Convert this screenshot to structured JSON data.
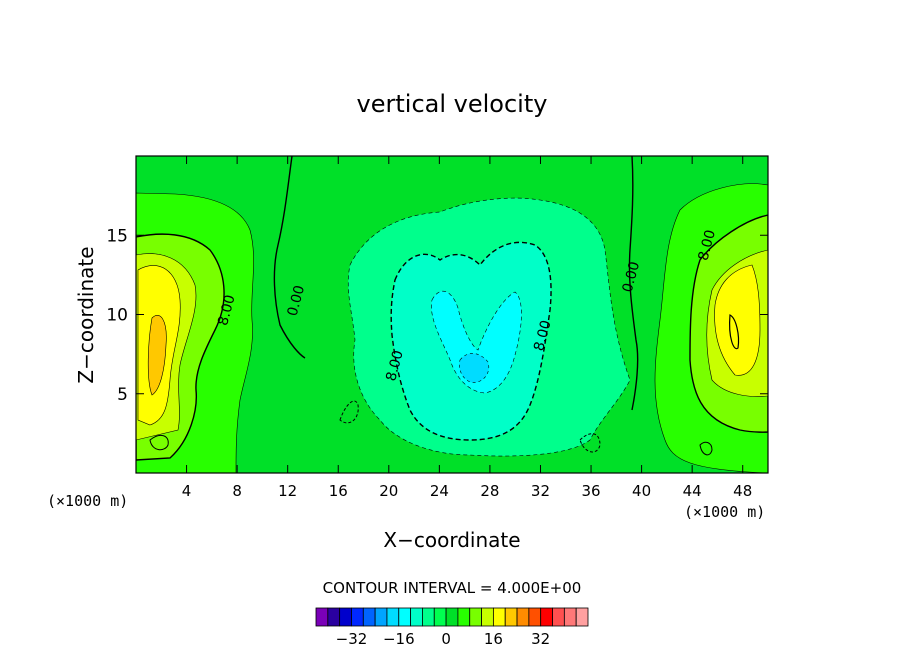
{
  "chart_data": {
    "type": "heatmap",
    "title": "vertical velocity",
    "xlabel": "X−coordinate",
    "ylabel": "Z−coordinate",
    "x_unit_left": "(×1000 m)",
    "x_unit_right": "(×1000 m)",
    "xlim": [
      0,
      50
    ],
    "ylim": [
      0,
      20
    ],
    "xticks": [
      "4",
      "8",
      "12",
      "16",
      "20",
      "24",
      "28",
      "32",
      "36",
      "40",
      "44",
      "48"
    ],
    "xtick_values": [
      4,
      8,
      12,
      16,
      20,
      24,
      28,
      32,
      36,
      40,
      44,
      48
    ],
    "yticks": [
      "5",
      "10",
      "15"
    ],
    "ytick_values": [
      5,
      10,
      15
    ],
    "contour_interval_label": "CONTOUR INTERVAL = 4.000E+00",
    "contour_interval": 4,
    "contour_labels": [
      {
        "text": "8.00",
        "x": 7.5,
        "y": 10.2
      },
      {
        "text": "0.00",
        "x": 13.0,
        "y": 10.8
      },
      {
        "text": "8.00",
        "x": 20.8,
        "y": 6.7
      },
      {
        "text": "8.00",
        "x": 32.5,
        "y": 8.6
      },
      {
        "text": "0.00",
        "x": 39.5,
        "y": 12.3
      },
      {
        "text": "8.00",
        "x": 45.5,
        "y": 14.3
      }
    ],
    "colorbar": {
      "levels": [
        -40,
        -36,
        -32,
        -28,
        -24,
        -20,
        -16,
        -12,
        -8,
        -4,
        0,
        4,
        8,
        12,
        16,
        20,
        24,
        28,
        32,
        36,
        40
      ],
      "colors": [
        "#7a00b8",
        "#2a00a0",
        "#0000cc",
        "#0028ff",
        "#0064ff",
        "#00a4ff",
        "#00dcff",
        "#00ffff",
        "#00ffc8",
        "#00ff8c",
        "#00ff50",
        "#00e028",
        "#28ff00",
        "#78ff00",
        "#c8ff00",
        "#ffff00",
        "#ffc800",
        "#ff8c00",
        "#ff5000",
        "#ff0000",
        "#ff5050",
        "#ff7878",
        "#ffa0a0"
      ],
      "tick_labels": [
        "−32",
        "−16",
        "0",
        "16",
        "32"
      ],
      "tick_values": [
        -32,
        -16,
        0,
        16,
        32
      ]
    },
    "regions": [
      {
        "level": 0,
        "color": "#00e028",
        "desc": "background"
      },
      {
        "level": 4,
        "color": "#28ff00",
        "x": [
          0,
          9
        ],
        "y": [
          0,
          17.5
        ]
      },
      {
        "level": 8,
        "color": "#78ff00",
        "x": [
          0,
          7
        ],
        "y": [
          1,
          15
        ]
      },
      {
        "level": 12,
        "color": "#c8ff00",
        "x": [
          0,
          5
        ],
        "y": [
          3,
          13
        ]
      },
      {
        "level": 16,
        "color": "#ffff00",
        "x": [
          0.5,
          4
        ],
        "y": [
          4,
          13
        ]
      },
      {
        "level": 20,
        "color": "#ffc800",
        "x": [
          1,
          2.5
        ],
        "y": [
          6,
          9.5
        ]
      },
      {
        "level": 4,
        "color": "#28ff00",
        "x": [
          40,
          50
        ],
        "y": [
          1,
          18
        ]
      },
      {
        "level": 8,
        "color": "#78ff00",
        "x": [
          42,
          50
        ],
        "y": [
          2,
          14
        ]
      },
      {
        "level": 12,
        "color": "#c8ff00",
        "x": [
          44,
          50
        ],
        "y": [
          5,
          12
        ]
      },
      {
        "level": 16,
        "color": "#ffff00",
        "x": [
          45,
          49
        ],
        "y": [
          6,
          11
        ]
      },
      {
        "level": -4,
        "color": "#00ff8c",
        "x": [
          17,
          39
        ],
        "y": [
          1,
          17.5
        ]
      },
      {
        "level": -8,
        "color": "#00ffc8",
        "x": [
          18,
          34
        ],
        "y": [
          2,
          14
        ]
      },
      {
        "level": -12,
        "color": "#00ffff",
        "x": [
          23,
          31
        ],
        "y": [
          7,
          11.5
        ]
      }
    ]
  }
}
